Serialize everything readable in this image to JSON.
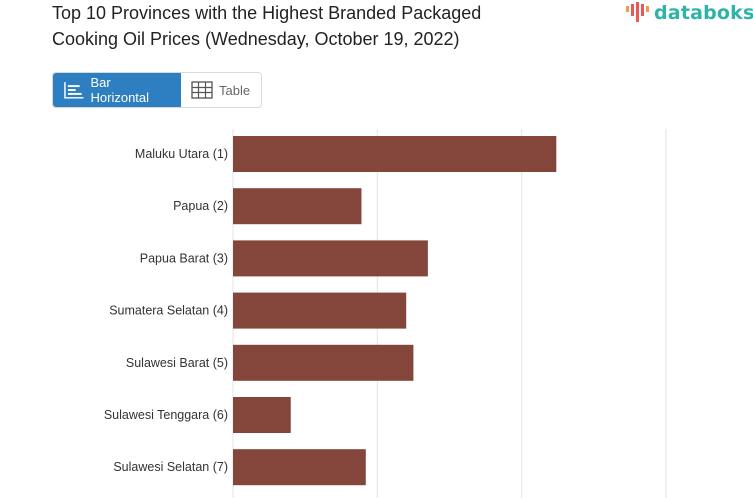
{
  "title": {
    "line1": "Top 10 Provinces with the Highest Branded Packaged",
    "line2": "Cooking Oil Prices (Wednesday, October 19, 2022)"
  },
  "brand": {
    "name": "databoks",
    "color": "#2db3a8"
  },
  "view_toggle": {
    "active_label": "Bar Horizontal",
    "table_label": "Table",
    "active_color": "#2d7fc1"
  },
  "chart_data": {
    "type": "bar",
    "orientation": "horizontal",
    "bar_color": "#84453b",
    "grid": true,
    "xlim": [
      0,
      30000
    ],
    "categories": [
      "Maluku Utara (1)",
      "Papua (2)",
      "Papua Barat (3)",
      "Sumatera Selatan (4)",
      "Sulawesi Barat (5)",
      "Sulawesi Tenggara (6)",
      "Sulawesi Selatan (7)"
    ],
    "values": [
      22400,
      8900,
      13500,
      12000,
      12500,
      4000,
      9200
    ]
  }
}
